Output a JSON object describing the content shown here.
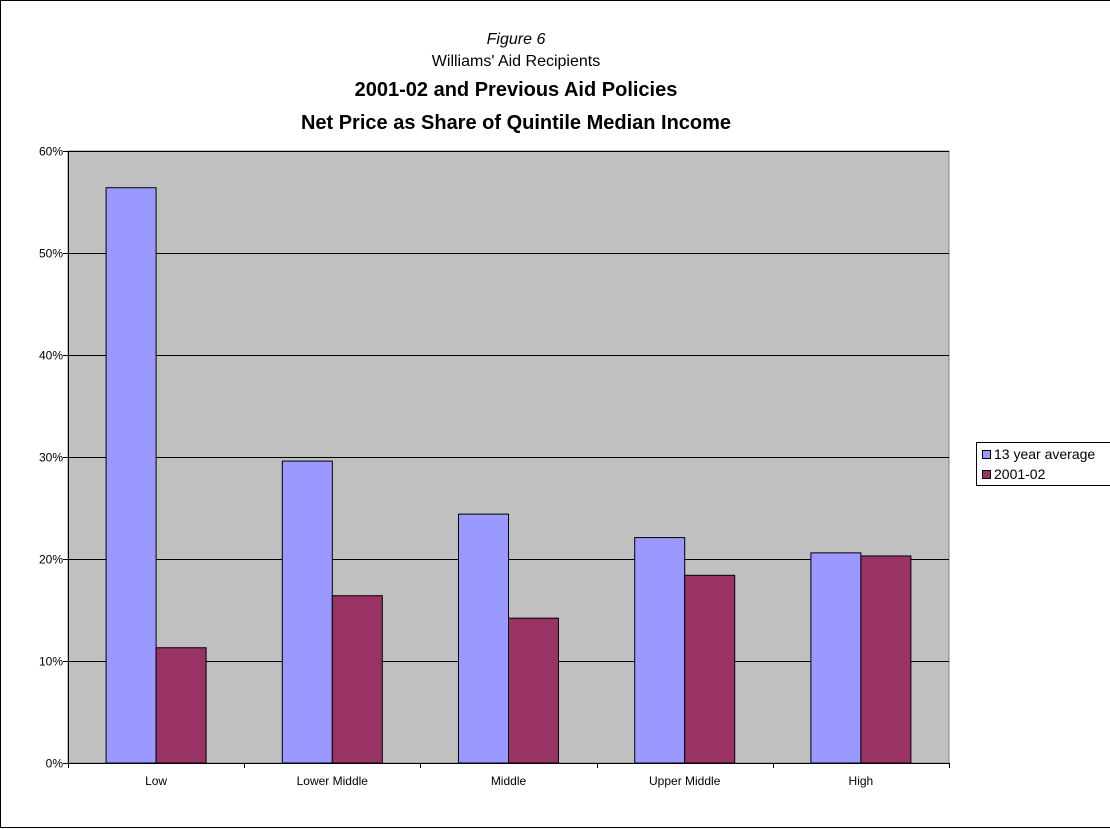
{
  "figure_label": "Figure 6",
  "subtitle": "Williams' Aid Recipients",
  "title_line1": "2001-02 and Previous Aid Policies",
  "title_line2": "Net Price as Share of Quintile Median Income",
  "colors": {
    "plot_bg": "#c0c0c0",
    "grid": "#000000",
    "series1": "#9999ff",
    "series2": "#993366"
  },
  "chart_data": {
    "type": "bar",
    "categories": [
      "Low",
      "Lower Middle",
      "Middle",
      "Upper Middle",
      "High"
    ],
    "series": [
      {
        "name": "13 year average",
        "values": [
          56.4,
          29.6,
          24.4,
          22.1,
          20.6
        ]
      },
      {
        "name": "2001-02",
        "values": [
          11.3,
          16.4,
          14.2,
          18.4,
          20.3
        ]
      }
    ],
    "ylim": [
      0,
      60
    ],
    "yticks": [
      0,
      10,
      20,
      30,
      40,
      50,
      60
    ],
    "ytick_labels": [
      "0%",
      "10%",
      "20%",
      "30%",
      "40%",
      "50%",
      "60%"
    ],
    "grid": true,
    "legend_position": "right"
  }
}
